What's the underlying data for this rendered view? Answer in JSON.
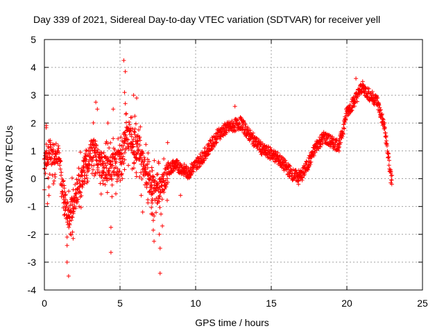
{
  "chart_data": {
    "type": "scatter",
    "title": "Day 339 of 2021, Sidereal Day-to-day VTEC variation (SDTVAR) for receiver yell",
    "xlabel": "GPS time / hours",
    "ylabel": "SDTVAR / TECUs",
    "xlim": [
      0,
      25
    ],
    "ylim": [
      -4,
      5
    ],
    "xticks": [
      0,
      5,
      10,
      15,
      20,
      25
    ],
    "yticks": [
      -4,
      -3,
      -2,
      -1,
      0,
      1,
      2,
      3,
      4,
      5
    ],
    "grid": true,
    "marker": "+",
    "color": "#ff0000",
    "series": [
      {
        "name": "SDTVAR",
        "trend": [
          [
            0.0,
            0.7
          ],
          [
            0.2,
            0.9
          ],
          [
            0.4,
            1.0
          ],
          [
            0.6,
            0.85
          ],
          [
            0.8,
            1.1
          ],
          [
            1.0,
            0.6
          ],
          [
            1.2,
            -0.3
          ],
          [
            1.4,
            -1.0
          ],
          [
            1.6,
            -1.4
          ],
          [
            1.8,
            -1.1
          ],
          [
            2.0,
            -0.6
          ],
          [
            2.3,
            -0.2
          ],
          [
            2.6,
            0.3
          ],
          [
            3.0,
            0.8
          ],
          [
            3.3,
            1.2
          ],
          [
            3.6,
            0.6
          ],
          [
            4.0,
            0.4
          ],
          [
            4.3,
            0.3
          ],
          [
            4.6,
            0.5
          ],
          [
            5.0,
            0.6
          ],
          [
            5.3,
            1.3
          ],
          [
            5.6,
            1.6
          ],
          [
            6.0,
            1.2
          ],
          [
            6.3,
            1.1
          ],
          [
            6.6,
            0.4
          ],
          [
            7.0,
            -0.2
          ],
          [
            7.4,
            -0.5
          ],
          [
            7.8,
            -0.3
          ],
          [
            8.2,
            0.3
          ],
          [
            8.6,
            0.5
          ],
          [
            9.0,
            0.4
          ],
          [
            9.5,
            0.2
          ],
          [
            10.0,
            0.5
          ],
          [
            10.5,
            0.8
          ],
          [
            11.0,
            1.2
          ],
          [
            11.5,
            1.6
          ],
          [
            12.0,
            1.8
          ],
          [
            12.5,
            1.9
          ],
          [
            13.0,
            2.0
          ],
          [
            13.5,
            1.6
          ],
          [
            14.0,
            1.3
          ],
          [
            14.5,
            1.0
          ],
          [
            15.0,
            0.9
          ],
          [
            15.5,
            0.7
          ],
          [
            16.0,
            0.4
          ],
          [
            16.5,
            0.1
          ],
          [
            17.0,
            0.1
          ],
          [
            17.5,
            0.6
          ],
          [
            18.0,
            1.2
          ],
          [
            18.5,
            1.5
          ],
          [
            19.0,
            1.3
          ],
          [
            19.5,
            1.2
          ],
          [
            20.0,
            2.4
          ],
          [
            20.5,
            2.8
          ],
          [
            21.0,
            3.3
          ],
          [
            21.5,
            3.0
          ],
          [
            22.0,
            2.8
          ],
          [
            22.5,
            1.8
          ],
          [
            22.8,
            0.5
          ],
          [
            23.0,
            -0.1
          ]
        ],
        "outliers": [
          [
            1.5,
            -2.4
          ],
          [
            1.5,
            -3.0
          ],
          [
            1.6,
            -3.5
          ],
          [
            1.5,
            -2.1
          ],
          [
            1.9,
            -2.15
          ],
          [
            4.4,
            -2.65
          ],
          [
            4.4,
            -1.75
          ],
          [
            4.55,
            2.5
          ],
          [
            5.25,
            4.25
          ],
          [
            5.35,
            3.85
          ],
          [
            5.3,
            3.1
          ],
          [
            5.35,
            2.7
          ],
          [
            5.9,
            3.0
          ],
          [
            6.1,
            2.9
          ],
          [
            7.0,
            -0.45
          ],
          [
            7.1,
            -0.8
          ],
          [
            7.2,
            -1.5
          ],
          [
            7.2,
            -1.85
          ],
          [
            7.25,
            -2.25
          ],
          [
            7.6,
            -2.0
          ],
          [
            7.65,
            -2.5
          ],
          [
            7.65,
            -3.4
          ],
          [
            7.8,
            -1.7
          ],
          [
            0.0,
            -0.4
          ],
          [
            0.2,
            -0.9
          ],
          [
            0.3,
            -0.6
          ],
          [
            0.3,
            -0.3
          ],
          [
            2.0,
            -0.8
          ],
          [
            2.3,
            -1.0
          ],
          [
            3.4,
            2.75
          ],
          [
            3.5,
            2.5
          ],
          [
            6.4,
            -0.6
          ],
          [
            6.5,
            -1.2
          ],
          [
            7.1,
            0.4
          ],
          [
            20.6,
            3.6
          ],
          [
            22.9,
            -0.15
          ],
          [
            16.8,
            -0.2
          ],
          [
            12.6,
            2.6
          ],
          [
            9.0,
            -0.6
          ],
          [
            4.2,
            2.0
          ]
        ]
      }
    ]
  }
}
